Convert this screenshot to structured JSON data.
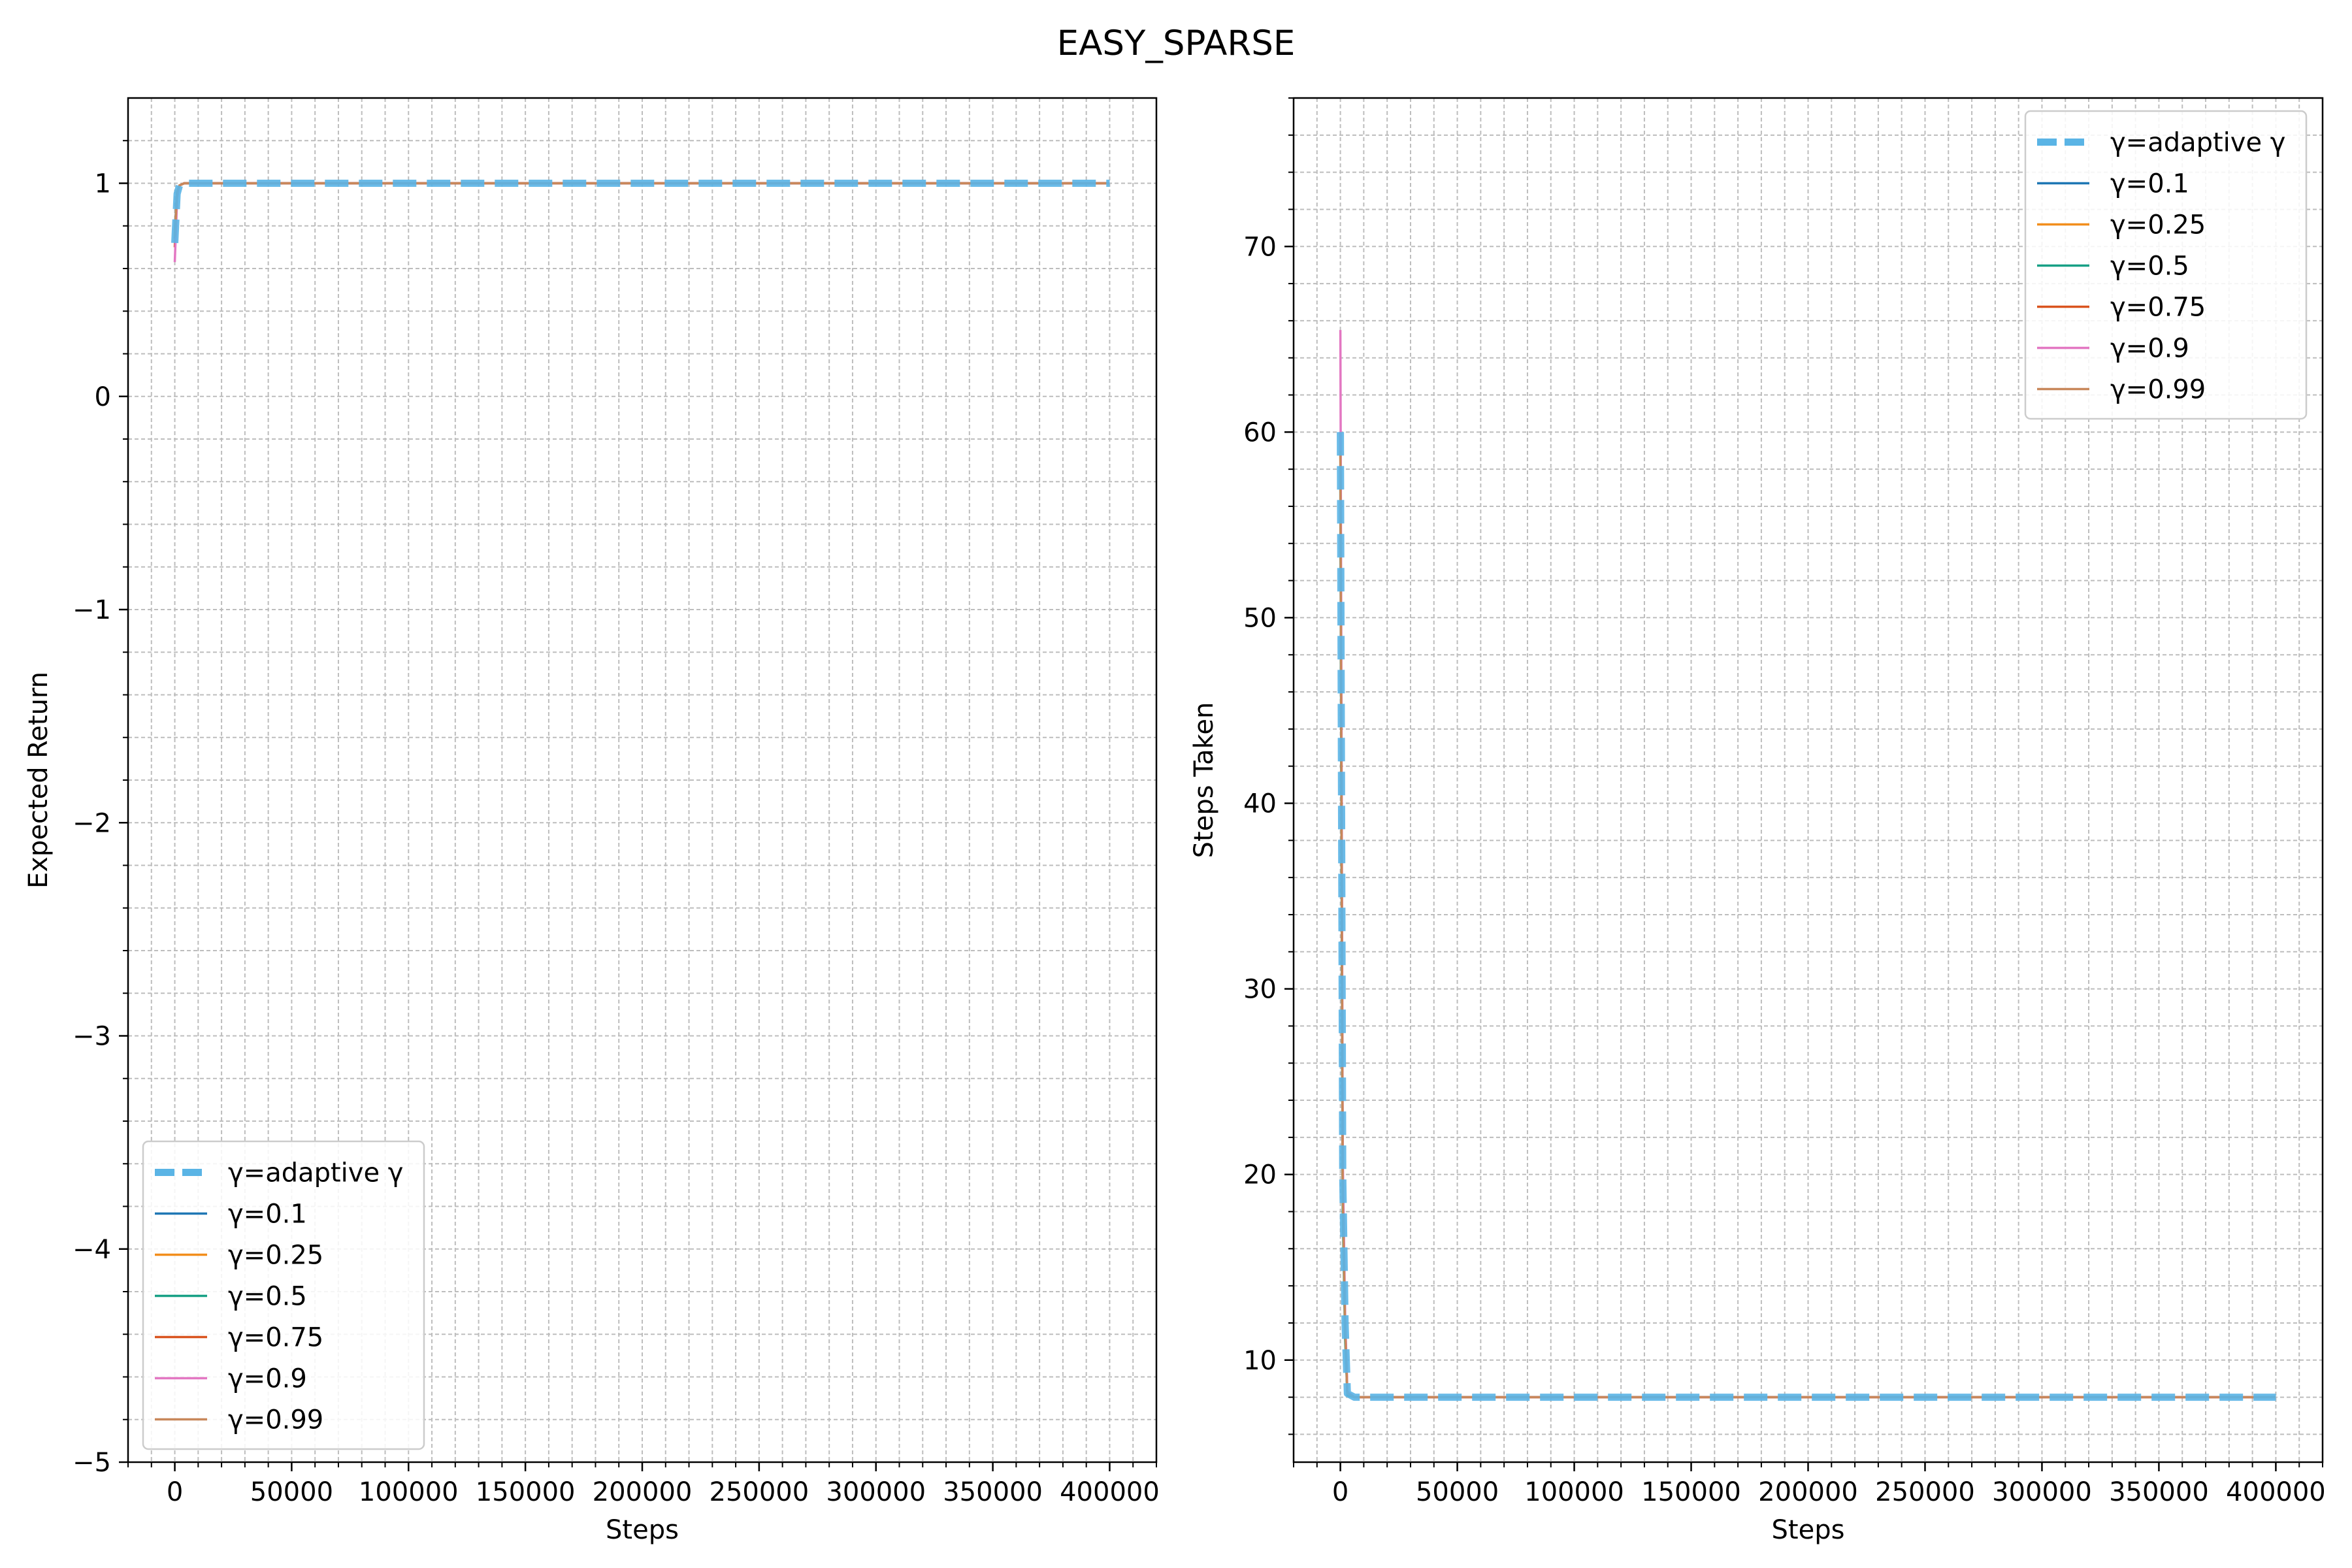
{
  "figure": {
    "title": "EASY_SPARSE"
  },
  "chart_data": [
    {
      "type": "line",
      "xlabel": "Steps",
      "ylabel": "Expected Return",
      "xlim": [
        -20000,
        420000
      ],
      "ylim": [
        -5,
        1.4
      ],
      "xticks": [
        0,
        50000,
        100000,
        150000,
        200000,
        250000,
        300000,
        350000,
        400000
      ],
      "xtick_labels": [
        "0",
        "50000",
        "100000",
        "150000",
        "200000",
        "250000",
        "300000",
        "350000",
        "400000"
      ],
      "yticks": [
        -5,
        -4,
        -3,
        -2,
        -1,
        0,
        1
      ],
      "ytick_labels": [
        "−5",
        "−4",
        "−3",
        "−2",
        "−1",
        "0",
        "1"
      ],
      "grid": true,
      "legend_position": "lower-left",
      "series": [
        {
          "name": "γ=adaptive γ",
          "color": "#5ab4e5",
          "style": "dashed-thick",
          "x": [
            0,
            1000,
            2000,
            4000,
            8000,
            400000
          ],
          "y": [
            0.72,
            0.95,
            0.99,
            1.0,
            1.0,
            1.0
          ]
        },
        {
          "name": "γ=0.1",
          "color": "#1f77b4",
          "style": "solid",
          "x": [
            0,
            1000,
            2000,
            4000,
            8000,
            400000
          ],
          "y": [
            0.78,
            0.96,
            0.99,
            1.0,
            1.0,
            1.0
          ]
        },
        {
          "name": "γ=0.25",
          "color": "#f28e1c",
          "style": "solid",
          "x": [
            0,
            1000,
            2000,
            4000,
            8000,
            400000
          ],
          "y": [
            0.76,
            0.96,
            0.99,
            1.0,
            1.0,
            1.0
          ]
        },
        {
          "name": "γ=0.5",
          "color": "#17a085",
          "style": "solid",
          "x": [
            0,
            1000,
            2000,
            4000,
            8000,
            400000
          ],
          "y": [
            0.74,
            0.95,
            0.99,
            1.0,
            1.0,
            1.0
          ]
        },
        {
          "name": "γ=0.75",
          "color": "#d9531e",
          "style": "solid",
          "x": [
            0,
            1000,
            2000,
            4000,
            8000,
            400000
          ],
          "y": [
            0.7,
            0.95,
            0.99,
            1.0,
            1.0,
            1.0
          ]
        },
        {
          "name": "γ=0.9",
          "color": "#e377c2",
          "style": "solid",
          "x": [
            0,
            1000,
            2000,
            4000,
            8000,
            400000
          ],
          "y": [
            0.63,
            0.93,
            0.99,
            1.0,
            1.0,
            1.0
          ]
        },
        {
          "name": "γ=0.99",
          "color": "#c8875a",
          "style": "solid",
          "x": [
            0,
            1000,
            2000,
            4000,
            8000,
            400000
          ],
          "y": [
            0.75,
            0.96,
            0.99,
            1.0,
            1.0,
            1.0
          ]
        }
      ]
    },
    {
      "type": "line",
      "xlabel": "Steps",
      "ylabel": "Steps Taken",
      "xlim": [
        -20000,
        420000
      ],
      "ylim": [
        4.5,
        78
      ],
      "xticks": [
        0,
        50000,
        100000,
        150000,
        200000,
        250000,
        300000,
        350000,
        400000
      ],
      "xtick_labels": [
        "0",
        "50000",
        "100000",
        "150000",
        "200000",
        "250000",
        "300000",
        "350000",
        "400000"
      ],
      "yticks": [
        10,
        20,
        30,
        40,
        50,
        60,
        70
      ],
      "ytick_labels": [
        "10",
        "20",
        "30",
        "40",
        "50",
        "60",
        "70"
      ],
      "grid": true,
      "legend_position": "upper-right",
      "series": [
        {
          "name": "γ=adaptive γ",
          "color": "#5ab4e5",
          "style": "dashed-thick",
          "x": [
            0,
            500,
            1000,
            2000,
            3000,
            6000,
            400000
          ],
          "y": [
            60,
            40,
            20,
            12,
            8.2,
            8,
            8
          ]
        },
        {
          "name": "γ=0.1",
          "color": "#1f77b4",
          "style": "solid",
          "x": [
            0,
            500,
            1000,
            2000,
            3000,
            6000,
            400000
          ],
          "y": [
            58,
            38,
            19,
            11.5,
            8.2,
            8,
            8
          ]
        },
        {
          "name": "γ=0.25",
          "color": "#f28e1c",
          "style": "solid",
          "x": [
            0,
            500,
            1000,
            2000,
            3000,
            6000,
            400000
          ],
          "y": [
            59,
            39,
            19,
            11.8,
            8.2,
            8,
            8
          ]
        },
        {
          "name": "γ=0.5",
          "color": "#17a085",
          "style": "solid",
          "x": [
            0,
            500,
            1000,
            2000,
            3000,
            6000,
            400000
          ],
          "y": [
            57,
            37,
            18,
            11.2,
            8.1,
            8,
            8
          ]
        },
        {
          "name": "γ=0.75",
          "color": "#d9531e",
          "style": "solid",
          "x": [
            0,
            500,
            1000,
            2000,
            3000,
            6000,
            400000
          ],
          "y": [
            60,
            40,
            20,
            12,
            8.2,
            8,
            8
          ]
        },
        {
          "name": "γ=0.9",
          "color": "#e377c2",
          "style": "solid",
          "x": [
            0,
            500,
            1000,
            2000,
            3000,
            6000,
            400000
          ],
          "y": [
            65.5,
            43,
            21,
            12.5,
            8.3,
            8,
            8
          ]
        },
        {
          "name": "γ=0.99",
          "color": "#c8875a",
          "style": "solid",
          "x": [
            0,
            500,
            1000,
            2000,
            3000,
            6000,
            400000
          ],
          "y": [
            59,
            39,
            19,
            11.8,
            8.2,
            8,
            8
          ]
        }
      ]
    }
  ]
}
